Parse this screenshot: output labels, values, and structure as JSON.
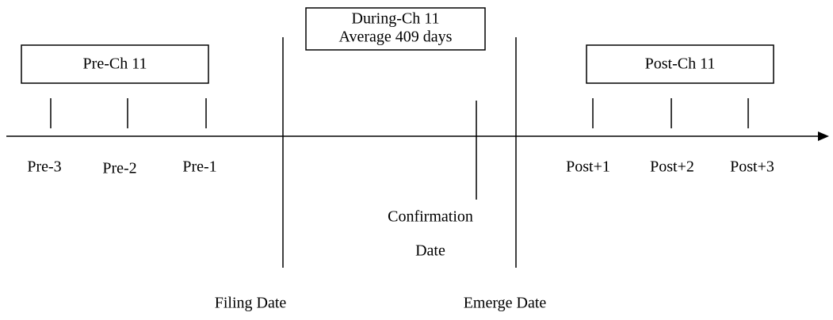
{
  "boxes": [
    {
      "lines": [
        "Pre-Ch 11"
      ]
    },
    {
      "lines": [
        "During-Ch 11",
        "Average 409 days"
      ]
    },
    {
      "lines": [
        "Post-Ch 11"
      ]
    }
  ],
  "periods": [
    "Pre-3",
    "Pre-2",
    "Pre-1",
    "Post+1",
    "Post+2",
    "Post+3"
  ],
  "events": {
    "confirmation": [
      "Confirmation",
      "Date"
    ],
    "filing": "Filing Date",
    "emerge": "Emerge Date"
  }
}
